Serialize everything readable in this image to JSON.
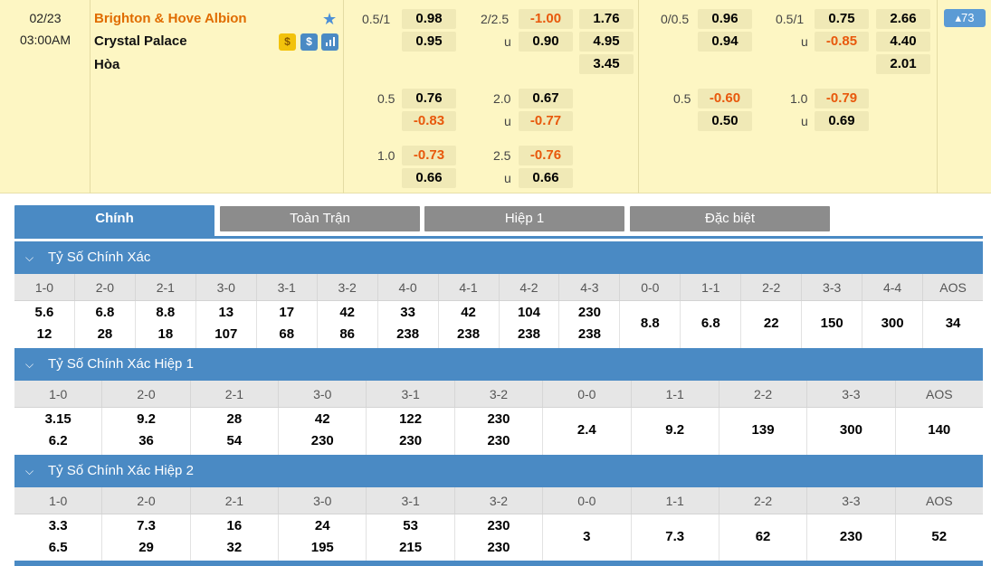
{
  "match": {
    "date": "02/23",
    "time": "03:00AM",
    "home": "Brighton & Hove Albion",
    "away": "Crystal Palace",
    "draw": "Hòa",
    "more_count": "▴73",
    "icons": [
      "coin-icon",
      "dollar-icon",
      "stats-icon"
    ]
  },
  "odds": {
    "ft_hdp": {
      "r1": {
        "line": "0.5/1",
        "v": "0.98"
      },
      "r2": {
        "v": "0.95"
      },
      "r3": {
        "line": "0.5",
        "v": "0.76"
      },
      "r4": {
        "v": "-0.83"
      },
      "r5": {
        "line": "1.0",
        "v": "-0.73"
      },
      "r6": {
        "v": "0.66"
      }
    },
    "ft_ou": {
      "r1": {
        "line": "2/2.5",
        "v": "-1.00"
      },
      "r2": {
        "line": "u",
        "v": "0.90"
      },
      "r3": {
        "line": "2.0",
        "v": "0.67"
      },
      "r4": {
        "line": "u",
        "v": "-0.77"
      },
      "r5": {
        "line": "2.5",
        "v": "-0.76"
      },
      "r6": {
        "line": "u",
        "v": "0.66"
      }
    },
    "ft_1x2": [
      "1.76",
      "4.95",
      "3.45"
    ],
    "h1_hdp": {
      "r1": {
        "line": "0/0.5",
        "v": "0.96"
      },
      "r2": {
        "v": "0.94"
      },
      "r3": {
        "line": "0.5",
        "v": "-0.60"
      },
      "r4": {
        "v": "0.50"
      }
    },
    "h1_ou": {
      "r1": {
        "line": "0.5/1",
        "v": "0.75"
      },
      "r2": {
        "line": "u",
        "v": "-0.85"
      },
      "r3": {
        "line": "1.0",
        "v": "-0.79"
      },
      "r4": {
        "line": "u",
        "v": "0.69"
      }
    },
    "h1_1x2": [
      "2.66",
      "4.40",
      "2.01"
    ]
  },
  "tabs": [
    "Chính",
    "Toàn Trận",
    "Hiệp 1",
    "Đặc biệt"
  ],
  "sections": [
    {
      "title": "Tỷ Số Chính Xác",
      "headers": [
        "1-0",
        "2-0",
        "2-1",
        "3-0",
        "3-1",
        "3-2",
        "4-0",
        "4-1",
        "4-2",
        "4-3",
        "0-0",
        "1-1",
        "2-2",
        "3-3",
        "4-4",
        "AOS"
      ],
      "top": [
        "5.6",
        "6.8",
        "8.8",
        "13",
        "17",
        "42",
        "33",
        "42",
        "104",
        "230",
        "8.8",
        "6.8",
        "22",
        "150",
        "300",
        "34"
      ],
      "bottom": [
        "12",
        "28",
        "18",
        "107",
        "68",
        "86",
        "238",
        "238",
        "238",
        "238",
        "",
        "",
        "",
        "",
        "",
        ""
      ]
    },
    {
      "title": "Tỷ Số Chính Xác Hiệp 1",
      "headers": [
        "1-0",
        "2-0",
        "2-1",
        "3-0",
        "3-1",
        "3-2",
        "0-0",
        "1-1",
        "2-2",
        "3-3",
        "AOS"
      ],
      "top": [
        "3.15",
        "9.2",
        "28",
        "42",
        "122",
        "230",
        "2.4",
        "9.2",
        "139",
        "300",
        "140"
      ],
      "bottom": [
        "6.2",
        "36",
        "54",
        "230",
        "230",
        "230",
        "",
        "",
        "",
        "",
        ""
      ]
    },
    {
      "title": "Tỷ Số Chính Xác Hiệp 2",
      "headers": [
        "1-0",
        "2-0",
        "2-1",
        "3-0",
        "3-1",
        "3-2",
        "0-0",
        "1-1",
        "2-2",
        "3-3",
        "AOS"
      ],
      "top": [
        "3.3",
        "7.3",
        "16",
        "24",
        "53",
        "230",
        "3",
        "7.3",
        "62",
        "230",
        "52"
      ],
      "bottom": [
        "6.5",
        "29",
        "32",
        "195",
        "215",
        "230",
        "",
        "",
        "",
        "",
        ""
      ]
    }
  ],
  "colors": {
    "accent": "#4a8ac4",
    "negative": "#e8580c",
    "home": "#e06c00",
    "match_bg": "#fdf6c3"
  }
}
